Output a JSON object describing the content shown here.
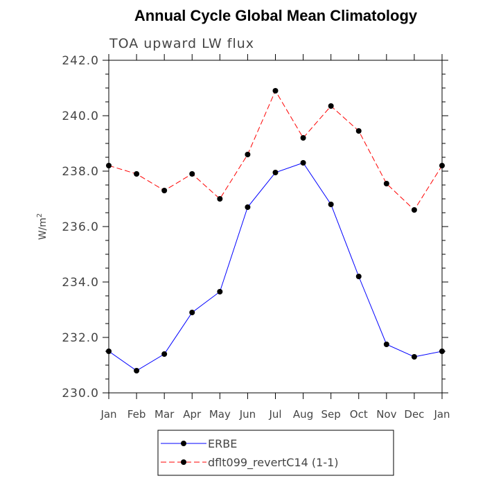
{
  "chart_data": {
    "type": "line",
    "title": "Annual Cycle Global Mean Climatology",
    "subtitle": "TOA upward LW flux",
    "ylabel_base": "W/m",
    "ylabel_sup": "2",
    "ylim": [
      230.0,
      242.0
    ],
    "y_ticks": [
      "230.0",
      "232.0",
      "234.0",
      "236.0",
      "238.0",
      "240.0",
      "242.0"
    ],
    "y_tick_values": [
      230,
      232,
      234,
      236,
      238,
      240,
      242
    ],
    "categories": [
      "Jan",
      "Feb",
      "Mar",
      "Apr",
      "May",
      "Jun",
      "Jul",
      "Aug",
      "Sep",
      "Oct",
      "Nov",
      "Dec",
      "Jan"
    ],
    "series": [
      {
        "name": "ERBE",
        "color": "#0000ff",
        "dash": "solid",
        "values": [
          231.5,
          230.8,
          231.4,
          232.9,
          233.65,
          236.7,
          237.95,
          238.3,
          236.8,
          234.2,
          231.75,
          231.3,
          231.5
        ]
      },
      {
        "name": "dflt099_revertC14 (1-1)",
        "color": "#ff0000",
        "dash": "dashed",
        "values": [
          238.2,
          237.9,
          237.3,
          237.9,
          237.0,
          238.6,
          240.9,
          239.2,
          240.35,
          239.45,
          237.55,
          236.6,
          238.2
        ]
      }
    ],
    "grid": false,
    "legend_position": "bottom-center"
  }
}
